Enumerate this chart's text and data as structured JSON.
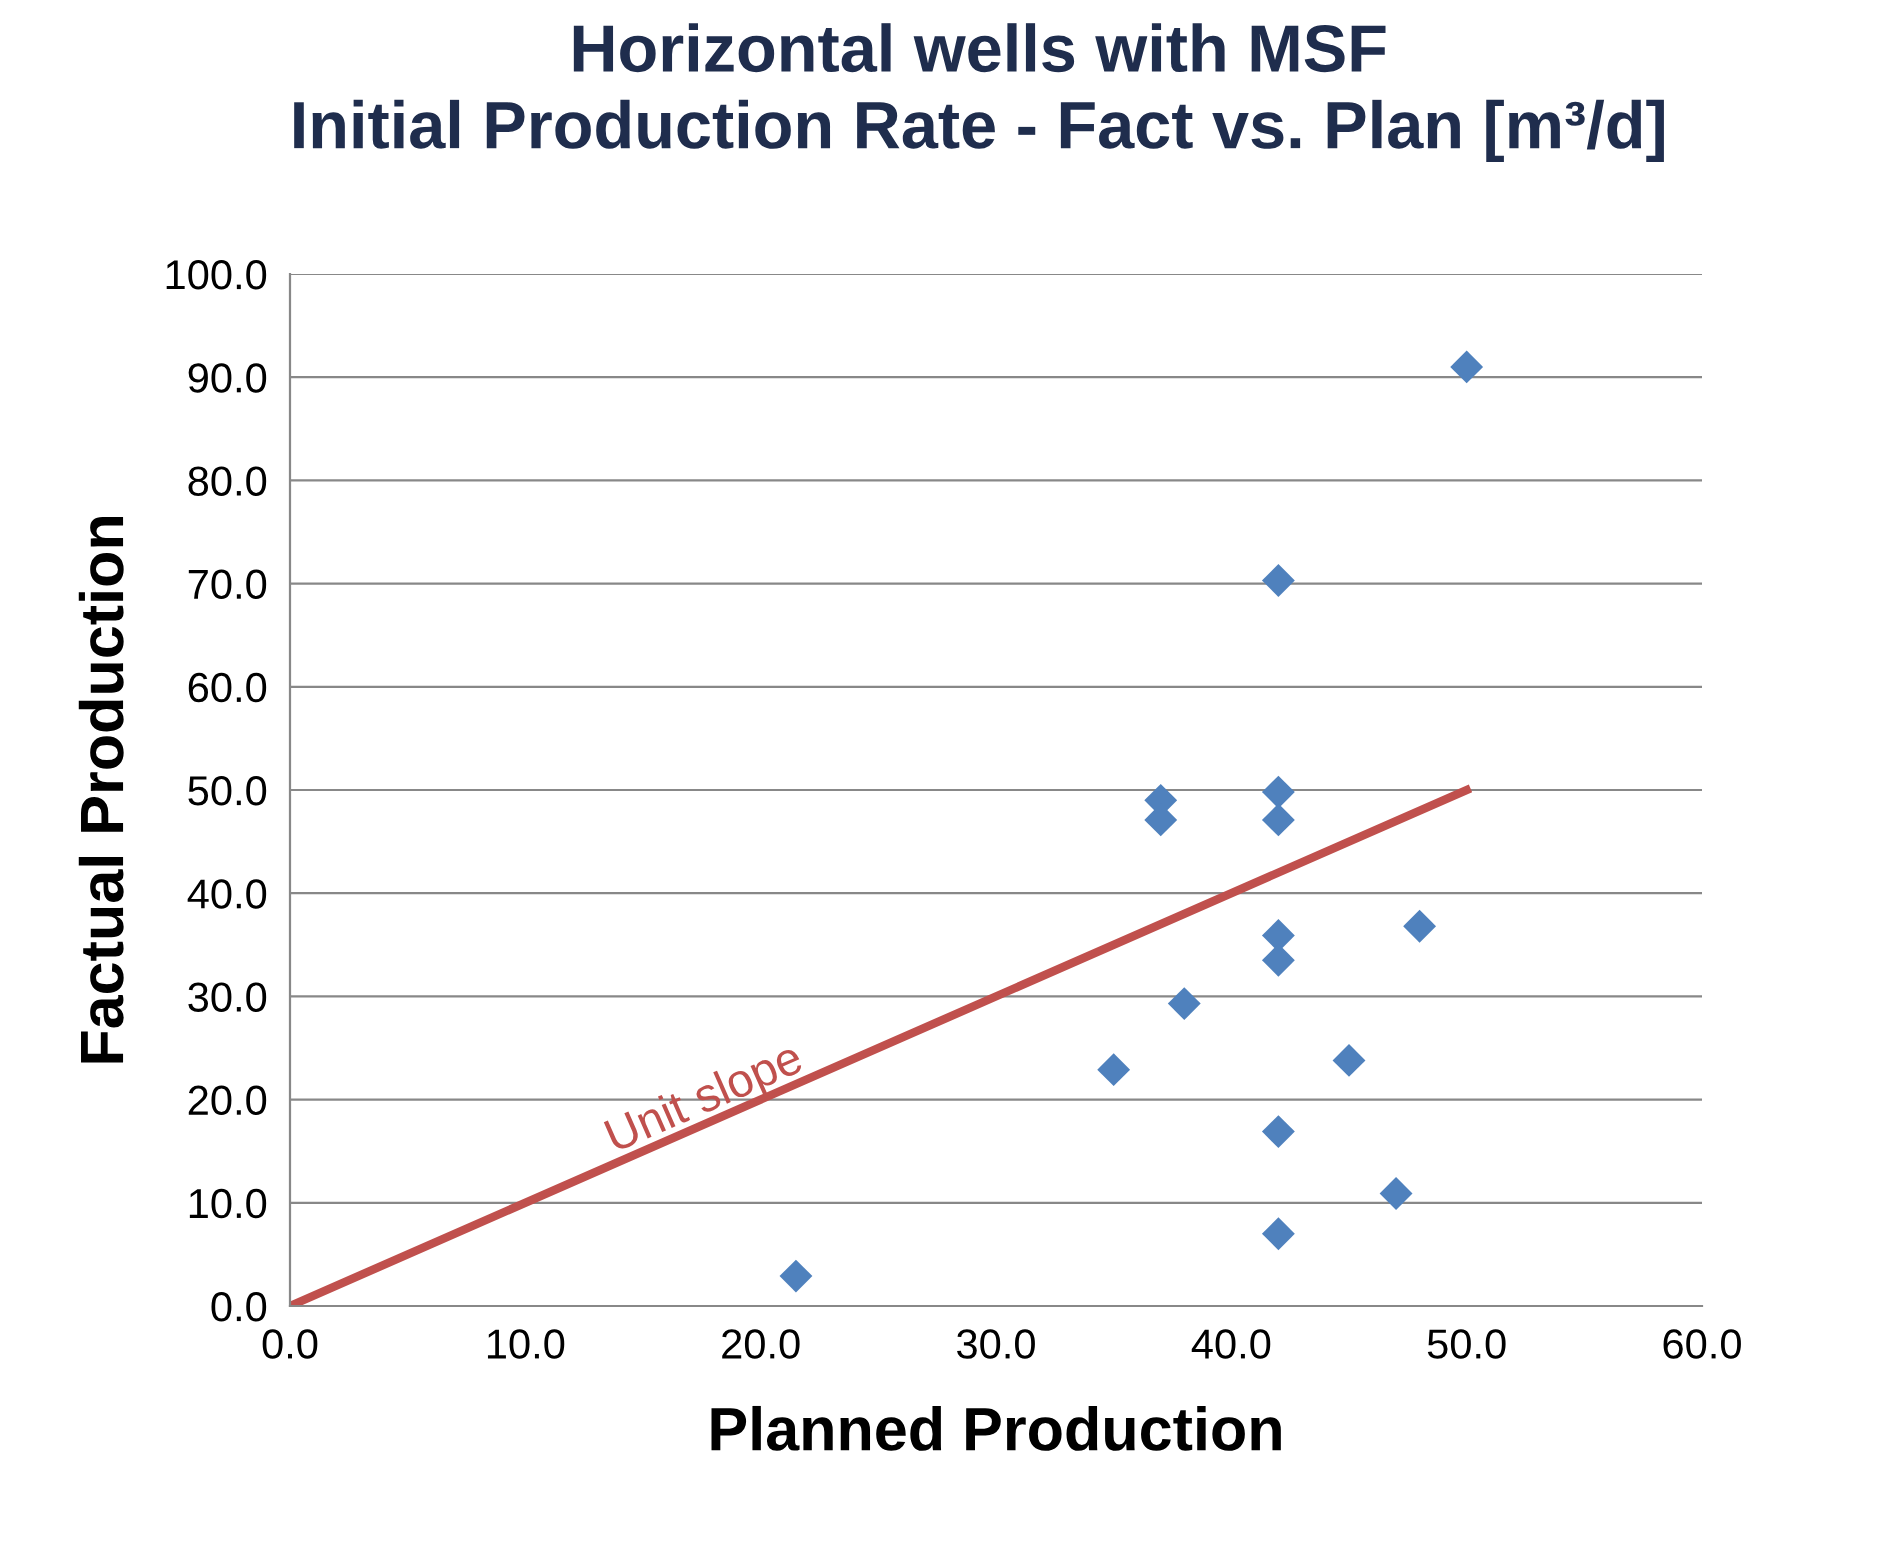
{
  "chart_data": {
    "type": "scatter",
    "title": "Horizontal wells with MSF\nInitial Production Rate - Fact vs. Plan [m³/d]",
    "xlabel": "Planned Production",
    "ylabel": "Factual Production",
    "series": [
      {
        "color": "#4f81bd",
        "marker": "diamond",
        "x": [
          50,
          42,
          37,
          37,
          42,
          42,
          42,
          42,
          48,
          38,
          35,
          45,
          42,
          47,
          42,
          21.5
        ],
        "values": [
          91,
          70.3,
          49,
          47.1,
          49.8,
          47.1,
          35.9,
          33.5,
          36.8,
          29.3,
          22.9,
          23.8,
          16.9,
          10.9,
          7,
          2.9
        ]
      },
      {
        "type": "line",
        "color": "#c0504d",
        "marker": "none",
        "x": [
          0,
          50
        ],
        "values": [
          0,
          50
        ]
      }
    ],
    "annotations": [
      {
        "text": "Unit slope",
        "x": 18,
        "y": 18
      }
    ],
    "xlim": [
      0,
      60
    ],
    "ylim": [
      0,
      100
    ],
    "xticks": [
      {
        "value": 0,
        "label": "0.0"
      },
      {
        "value": 10,
        "label": "10.0"
      },
      {
        "value": 20,
        "label": "20.0"
      },
      {
        "value": 30,
        "label": "30.0"
      },
      {
        "value": 40,
        "label": "40.0"
      },
      {
        "value": 50,
        "label": "50.0"
      },
      {
        "value": 60,
        "label": "60.0"
      }
    ],
    "yticks": [
      {
        "value": 0,
        "label": "0.0"
      },
      {
        "value": 10,
        "label": "10.0"
      },
      {
        "value": 20,
        "label": "20.0"
      },
      {
        "value": 30,
        "label": "30.0"
      },
      {
        "value": 40,
        "label": "40.0"
      },
      {
        "value": 50,
        "label": "50.0"
      },
      {
        "value": 60,
        "label": "60.0"
      },
      {
        "value": 70,
        "label": "70.0"
      },
      {
        "value": 80,
        "label": "80.0"
      },
      {
        "value": 90,
        "label": "90.0"
      },
      {
        "value": 100,
        "label": "100.0"
      }
    ],
    "grid": "y",
    "legend": false
  }
}
